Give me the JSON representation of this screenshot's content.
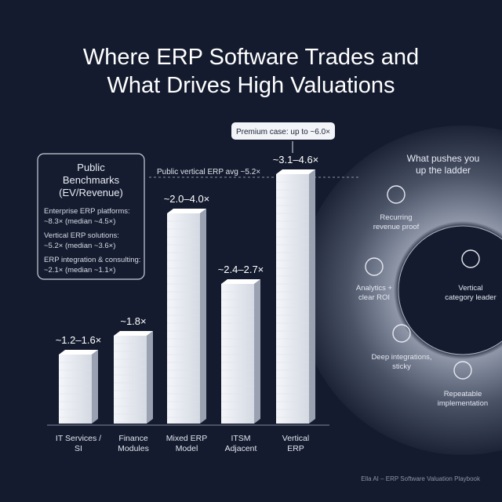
{
  "header": {
    "title": [
      "Where ERP Software Trades and",
      "What Drives High Valuations"
    ]
  },
  "benchmarks": {
    "title": [
      "Public",
      "Benchmarks",
      "(EV/Revenue)"
    ],
    "items": [
      {
        "label": "Enterprise ERP platforms:",
        "value": "~8.3× (median ~4.5×)"
      },
      {
        "label": "Vertical ERP solutions:",
        "value": "~5.2× (median ~3.6×)"
      },
      {
        "label": "ERP integration & consulting:",
        "value": "~2.1× (median ~1.1×)"
      }
    ]
  },
  "callouts": {
    "premium": "Premium case: up to ~6.0×",
    "average": "Public vertical ERP avg ~5.2×"
  },
  "bars": [
    {
      "label": "~1.2–1.6×",
      "category": [
        "IT Services /",
        "SI"
      ]
    },
    {
      "label": "~1.8×",
      "category": [
        "Finance",
        "Modules"
      ]
    },
    {
      "label": "~2.0–4.0×",
      "category": [
        "Mixed ERP",
        "Model"
      ]
    },
    {
      "label": "~2.4–2.7×",
      "category": [
        "ITSM",
        "Adjacent"
      ]
    },
    {
      "label": "~3.1–4.6×",
      "category": [
        "Vertical",
        "ERP"
      ]
    }
  ],
  "ladder": {
    "title": [
      "What pushes you",
      "up the ladder"
    ],
    "items": [
      [
        "Recurring",
        "revenue proof"
      ],
      [
        "Analytics +",
        "clear ROI"
      ],
      [
        "Vertical",
        "category leader"
      ],
      [
        "Deep integrations,",
        "sticky"
      ],
      [
        "Repeatable",
        "implementation"
      ]
    ]
  },
  "footer": "Ella AI – ERP Software Valuation Playbook"
}
